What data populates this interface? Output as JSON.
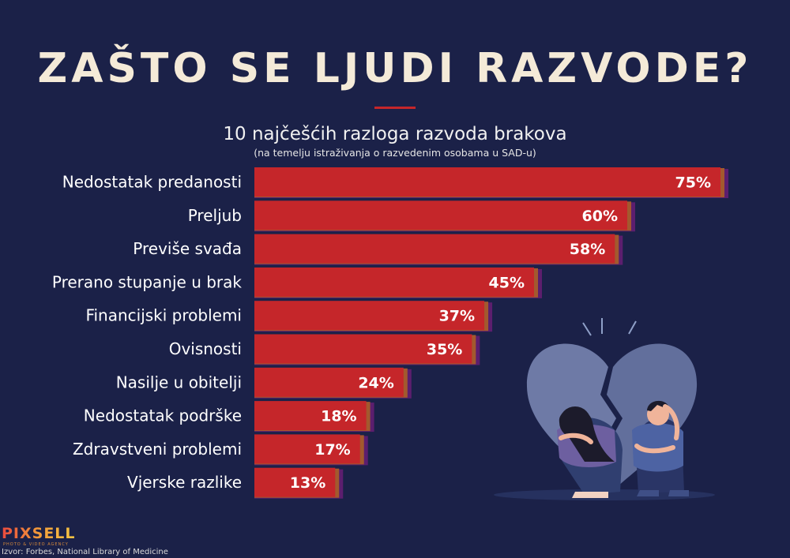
{
  "title": "ZAŠTO SE LJUDI RAZVODE?",
  "subtitle": "10 najčešćih razloga razvoda brakova",
  "note": "(na temelju istraživanja o razvedenim osobama u SAD-u)",
  "logo": {
    "text": "PIXSELL",
    "tagline": "PHOTO & VIDEO AGENCY"
  },
  "source": "Izvor: Forbes, National  Library of Medicine",
  "colors": {
    "background": "#1b2148",
    "bar": "#c5262a",
    "bar_shadow_orange": "#a3592e",
    "bar_shadow_purple": "#5c1e6e",
    "accent": "#c5262a",
    "title": "#f4ead8"
  },
  "illustration": {
    "icon": "broken-heart-sad-couple-icon"
  },
  "chart_data": {
    "type": "bar",
    "orientation": "horizontal",
    "title": "10 najčešćih razloga razvoda brakova",
    "categories": [
      "Nedostatak predanosti",
      "Preljub",
      "Previše svađa",
      "Prerano stupanje u brak",
      "Financijski problemi",
      "Ovisnosti",
      "Nasilje u obitelji",
      "Nedostatak podrške",
      "Zdravstveni problemi",
      "Vjerske razlike"
    ],
    "values": [
      75,
      60,
      58,
      45,
      37,
      35,
      24,
      18,
      17,
      13
    ],
    "value_labels": [
      "75%",
      "60%",
      "58%",
      "45%",
      "37%",
      "35%",
      "24%",
      "18%",
      "17%",
      "13%"
    ],
    "unit": "%",
    "xlim": [
      0,
      75
    ],
    "grid": false,
    "legend": "none"
  }
}
